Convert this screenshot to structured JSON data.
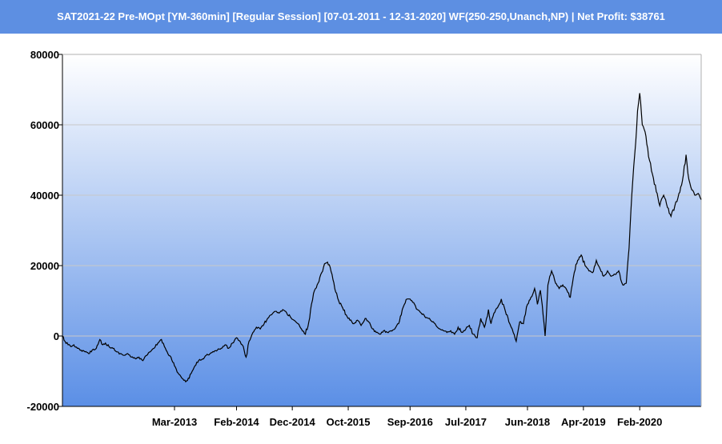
{
  "window": {
    "title": "SAT2021-22 Pre-MOpt [YM-360min] [Regular Session] [07-01-2011 - 12-31-2020] WF(250-250,Unanch,NP) | Net Profit: $38761"
  },
  "colors": {
    "title_bar": "#5d8fe2",
    "plot_top": "#ffffff",
    "plot_bottom": "#5b8fe6",
    "line": "#000000",
    "grid": "#c8c8c8"
  },
  "chart_data": {
    "type": "line",
    "title": "",
    "xlabel": "",
    "ylabel": "",
    "ylim": [
      -20000,
      80000
    ],
    "xlim": [
      "2011-07-01",
      "2020-12-31"
    ],
    "grid": true,
    "y_ticks": [
      "80000",
      "60000",
      "40000",
      "20000",
      "0",
      "-20000"
    ],
    "x_ticks": [
      {
        "label": "Mar-2013",
        "date": "2013-03-01"
      },
      {
        "label": "Feb-2014",
        "date": "2014-02-01"
      },
      {
        "label": "Dec-2014",
        "date": "2014-12-01"
      },
      {
        "label": "Oct-2015",
        "date": "2015-10-01"
      },
      {
        "label": "Sep-2016",
        "date": "2016-09-01"
      },
      {
        "label": "Jul-2017",
        "date": "2017-07-01"
      },
      {
        "label": "Jun-2018",
        "date": "2018-06-01"
      },
      {
        "label": "Apr-2019",
        "date": "2019-04-01"
      },
      {
        "label": "Feb-2020",
        "date": "2020-02-01"
      }
    ],
    "series": [
      {
        "values": [
          [
            "2011-07-01",
            0
          ],
          [
            "2011-07-15",
            -1500
          ],
          [
            "2011-08-01",
            -2500
          ],
          [
            "2011-08-15",
            -3000
          ],
          [
            "2011-09-01",
            -2500
          ],
          [
            "2011-09-20",
            -3500
          ],
          [
            "2011-10-10",
            -4000
          ],
          [
            "2011-11-01",
            -4500
          ],
          [
            "2011-11-20",
            -5000
          ],
          [
            "2011-12-10",
            -4000
          ],
          [
            "2012-01-01",
            -3500
          ],
          [
            "2012-01-20",
            -1000
          ],
          [
            "2012-02-05",
            -2500
          ],
          [
            "2012-02-20",
            -2000
          ],
          [
            "2012-03-10",
            -3000
          ],
          [
            "2012-04-01",
            -3500
          ],
          [
            "2012-04-20",
            -4500
          ],
          [
            "2012-05-10",
            -5000
          ],
          [
            "2012-06-01",
            -5500
          ],
          [
            "2012-06-20",
            -5000
          ],
          [
            "2012-07-10",
            -6000
          ],
          [
            "2012-08-01",
            -6500
          ],
          [
            "2012-08-20",
            -6000
          ],
          [
            "2012-09-10",
            -7000
          ],
          [
            "2012-10-01",
            -5500
          ],
          [
            "2012-10-20",
            -4500
          ],
          [
            "2012-11-10",
            -3500
          ],
          [
            "2012-12-01",
            -2000
          ],
          [
            "2012-12-20",
            -1000
          ],
          [
            "2013-01-05",
            -3000
          ],
          [
            "2013-01-20",
            -4500
          ],
          [
            "2013-02-10",
            -6000
          ],
          [
            "2013-03-01",
            -8500
          ],
          [
            "2013-03-20",
            -10500
          ],
          [
            "2013-04-10",
            -12000
          ],
          [
            "2013-05-01",
            -13000
          ],
          [
            "2013-05-20",
            -12000
          ],
          [
            "2013-06-05",
            -10000
          ],
          [
            "2013-06-20",
            -8500
          ],
          [
            "2013-07-10",
            -7000
          ],
          [
            "2013-08-01",
            -6500
          ],
          [
            "2013-08-20",
            -5500
          ],
          [
            "2013-09-10",
            -5000
          ],
          [
            "2013-10-01",
            -4500
          ],
          [
            "2013-10-20",
            -4000
          ],
          [
            "2013-11-10",
            -3500
          ],
          [
            "2013-12-01",
            -2500
          ],
          [
            "2013-12-20",
            -3500
          ],
          [
            "2014-01-10",
            -2000
          ],
          [
            "2014-02-01",
            -500
          ],
          [
            "2014-02-20",
            -1500
          ],
          [
            "2014-03-10",
            -3000
          ],
          [
            "2014-03-25",
            -6000
          ],
          [
            "2014-04-10",
            -1500
          ],
          [
            "2014-05-01",
            1000
          ],
          [
            "2014-05-20",
            2500
          ],
          [
            "2014-06-10",
            2000
          ],
          [
            "2014-07-01",
            3500
          ],
          [
            "2014-07-20",
            5000
          ],
          [
            "2014-08-10",
            6000
          ],
          [
            "2014-09-01",
            7000
          ],
          [
            "2014-09-20",
            6500
          ],
          [
            "2014-10-10",
            7500
          ],
          [
            "2014-11-01",
            6500
          ],
          [
            "2014-11-20",
            5500
          ],
          [
            "2014-12-10",
            4500
          ],
          [
            "2015-01-01",
            3500
          ],
          [
            "2015-01-20",
            2000
          ],
          [
            "2015-02-10",
            500
          ],
          [
            "2015-03-01",
            4000
          ],
          [
            "2015-03-15",
            9000
          ],
          [
            "2015-04-01",
            13000
          ],
          [
            "2015-04-20",
            15000
          ],
          [
            "2015-05-10",
            18000
          ],
          [
            "2015-05-25",
            20500
          ],
          [
            "2015-06-10",
            21000
          ],
          [
            "2015-06-25",
            19500
          ],
          [
            "2015-07-10",
            16000
          ],
          [
            "2015-07-25",
            12500
          ],
          [
            "2015-08-10",
            10000
          ],
          [
            "2015-09-01",
            8000
          ],
          [
            "2015-09-20",
            6000
          ],
          [
            "2015-10-10",
            4500
          ],
          [
            "2015-11-01",
            3500
          ],
          [
            "2015-11-20",
            4500
          ],
          [
            "2015-12-10",
            3000
          ],
          [
            "2016-01-01",
            5000
          ],
          [
            "2016-01-20",
            4000
          ],
          [
            "2016-02-10",
            2000
          ],
          [
            "2016-03-01",
            1000
          ],
          [
            "2016-03-20",
            500
          ],
          [
            "2016-04-10",
            1500
          ],
          [
            "2016-05-01",
            1000
          ],
          [
            "2016-05-20",
            1500
          ],
          [
            "2016-06-10",
            2000
          ],
          [
            "2016-07-01",
            3500
          ],
          [
            "2016-07-15",
            6000
          ],
          [
            "2016-08-01",
            9000
          ],
          [
            "2016-08-15",
            10500
          ],
          [
            "2016-09-01",
            10500
          ],
          [
            "2016-09-20",
            9500
          ],
          [
            "2016-10-10",
            7500
          ],
          [
            "2016-11-01",
            6500
          ],
          [
            "2016-11-20",
            5500
          ],
          [
            "2016-12-10",
            5000
          ],
          [
            "2017-01-01",
            4000
          ],
          [
            "2017-01-20",
            3000
          ],
          [
            "2017-02-10",
            2000
          ],
          [
            "2017-03-01",
            1500
          ],
          [
            "2017-03-20",
            1000
          ],
          [
            "2017-04-10",
            1500
          ],
          [
            "2017-05-01",
            500
          ],
          [
            "2017-05-20",
            2500
          ],
          [
            "2017-06-10",
            1000
          ],
          [
            "2017-07-01",
            2000
          ],
          [
            "2017-07-20",
            3000
          ],
          [
            "2017-08-10",
            500
          ],
          [
            "2017-09-01",
            -500
          ],
          [
            "2017-09-20",
            5000
          ],
          [
            "2017-10-10",
            2500
          ],
          [
            "2017-11-01",
            7500
          ],
          [
            "2017-11-15",
            3500
          ],
          [
            "2017-12-01",
            6500
          ],
          [
            "2017-12-20",
            8000
          ],
          [
            "2018-01-10",
            10500
          ],
          [
            "2018-02-01",
            7000
          ],
          [
            "2018-02-20",
            4000
          ],
          [
            "2018-03-10",
            2000
          ],
          [
            "2018-04-01",
            -1500
          ],
          [
            "2018-04-20",
            4000
          ],
          [
            "2018-05-10",
            3500
          ],
          [
            "2018-06-01",
            9000
          ],
          [
            "2018-06-20",
            11000
          ],
          [
            "2018-07-10",
            13500
          ],
          [
            "2018-07-25",
            9000
          ],
          [
            "2018-08-10",
            13000
          ],
          [
            "2018-08-25",
            6000
          ],
          [
            "2018-09-05",
            0
          ],
          [
            "2018-09-20",
            14500
          ],
          [
            "2018-10-10",
            18500
          ],
          [
            "2018-11-01",
            15000
          ],
          [
            "2018-11-20",
            13500
          ],
          [
            "2018-12-10",
            14500
          ],
          [
            "2019-01-01",
            13000
          ],
          [
            "2019-01-20",
            11000
          ],
          [
            "2019-02-10",
            18000
          ],
          [
            "2019-03-01",
            21500
          ],
          [
            "2019-03-20",
            23000
          ],
          [
            "2019-04-10",
            20000
          ],
          [
            "2019-05-01",
            18500
          ],
          [
            "2019-05-20",
            18000
          ],
          [
            "2019-06-10",
            21500
          ],
          [
            "2019-07-01",
            19000
          ],
          [
            "2019-07-20",
            17000
          ],
          [
            "2019-08-10",
            18500
          ],
          [
            "2019-09-01",
            17000
          ],
          [
            "2019-09-20",
            17500
          ],
          [
            "2019-10-10",
            18500
          ],
          [
            "2019-11-01",
            14500
          ],
          [
            "2019-11-20",
            15000
          ],
          [
            "2019-12-05",
            25000
          ],
          [
            "2019-12-20",
            40000
          ],
          [
            "2020-01-10",
            55000
          ],
          [
            "2020-01-20",
            64000
          ],
          [
            "2020-02-01",
            69000
          ],
          [
            "2020-02-15",
            60000
          ],
          [
            "2020-03-01",
            58000
          ],
          [
            "2020-03-20",
            51000
          ],
          [
            "2020-04-10",
            46000
          ],
          [
            "2020-05-01",
            41000
          ],
          [
            "2020-05-20",
            37000
          ],
          [
            "2020-06-10",
            40000
          ],
          [
            "2020-07-01",
            36500
          ],
          [
            "2020-07-20",
            34000
          ],
          [
            "2020-08-10",
            37000
          ],
          [
            "2020-09-01",
            40500
          ],
          [
            "2020-09-20",
            44000
          ],
          [
            "2020-10-10",
            51500
          ],
          [
            "2020-10-25",
            44500
          ],
          [
            "2020-11-10",
            41500
          ],
          [
            "2020-12-01",
            40000
          ],
          [
            "2020-12-15",
            40500
          ],
          [
            "2020-12-31",
            38761
          ]
        ]
      }
    ]
  }
}
